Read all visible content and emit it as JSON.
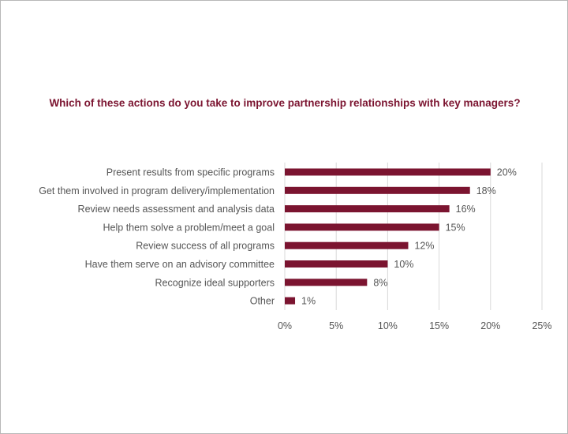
{
  "chart_data": {
    "type": "bar",
    "orientation": "horizontal",
    "title": "Which of these actions do you take to improve partnership relationships with key managers?",
    "categories": [
      "Present results from specific programs",
      "Get them involved in program delivery/implementation",
      "Review needs assessment and analysis data",
      "Help them solve a problem/meet a goal",
      "Review success of all programs",
      "Have them serve on an advisory committee",
      "Recognize ideal supporters",
      "Other"
    ],
    "values": [
      20,
      18,
      16,
      15,
      12,
      10,
      8,
      1
    ],
    "value_labels": [
      "20%",
      "18%",
      "16%",
      "15%",
      "12%",
      "10%",
      "8%",
      "1%"
    ],
    "x_ticks": [
      0,
      5,
      10,
      15,
      20,
      25
    ],
    "x_tick_labels": [
      "0%",
      "5%",
      "10%",
      "15%",
      "20%",
      "25%"
    ],
    "xlim": [
      0,
      25
    ],
    "grid": true,
    "legend": "none",
    "bar_color": "#7b1430",
    "grid_color": "#d9d9d9"
  }
}
